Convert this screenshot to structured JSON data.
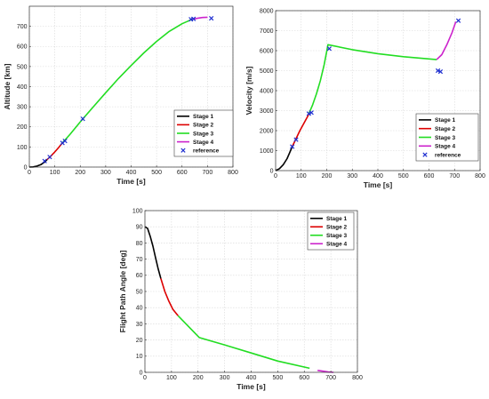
{
  "chart_data": [
    {
      "id": "altitude",
      "type": "line",
      "xlabel": "Time [s]",
      "ylabel": "Altitude [km]",
      "xlim": [
        0,
        800
      ],
      "ylim": [
        0,
        800
      ],
      "xticks": [
        0,
        100,
        200,
        300,
        400,
        500,
        600,
        700,
        800
      ],
      "yticks": [
        0,
        100,
        200,
        300,
        400,
        500,
        600,
        700
      ],
      "grid": true,
      "legend_position": "bottom-right",
      "series": [
        {
          "name": "Stage 1",
          "color": "#000000",
          "points": [
            [
              0,
              0
            ],
            [
              15,
              1
            ],
            [
              30,
              5
            ],
            [
              45,
              12
            ],
            [
              60,
              25
            ],
            [
              70,
              37
            ]
          ]
        },
        {
          "name": "Stage 2",
          "color": "#dd0000",
          "points": [
            [
              70,
              37
            ],
            [
              85,
              55
            ],
            [
              100,
              75
            ],
            [
              115,
              97
            ],
            [
              130,
              120
            ]
          ]
        },
        {
          "name": "Stage 3",
          "color": "#22dd22",
          "points": [
            [
              130,
              120
            ],
            [
              160,
              163
            ],
            [
              200,
              225
            ],
            [
              250,
              298
            ],
            [
              300,
              370
            ],
            [
              350,
              440
            ],
            [
              400,
              505
            ],
            [
              450,
              568
            ],
            [
              500,
              625
            ],
            [
              550,
              675
            ],
            [
              600,
              713
            ],
            [
              640,
              735
            ]
          ]
        },
        {
          "name": "Stage 4",
          "color": "#cc22cc",
          "points": [
            [
              640,
              735
            ],
            [
              660,
              740
            ],
            [
              680,
              744
            ],
            [
              700,
              745
            ]
          ]
        }
      ],
      "reference": {
        "name": "reference",
        "color": "#1f2fd0",
        "points": [
          [
            60,
            30
          ],
          [
            80,
            50
          ],
          [
            130,
            120
          ],
          [
            140,
            130
          ],
          [
            210,
            240
          ],
          [
            635,
            735
          ],
          [
            645,
            737
          ],
          [
            715,
            740
          ]
        ]
      }
    },
    {
      "id": "velocity",
      "type": "line",
      "xlabel": "Time [s]",
      "ylabel": "Velocity [m/s]",
      "xlim": [
        0,
        800
      ],
      "ylim": [
        0,
        8000
      ],
      "xticks": [
        0,
        100,
        200,
        300,
        400,
        500,
        600,
        700,
        800
      ],
      "yticks": [
        0,
        1000,
        2000,
        3000,
        4000,
        5000,
        6000,
        7000,
        8000
      ],
      "grid": true,
      "legend_position": "bottom-right",
      "series": [
        {
          "name": "Stage 1",
          "color": "#000000",
          "points": [
            [
              0,
              0
            ],
            [
              15,
              100
            ],
            [
              30,
              300
            ],
            [
              45,
              600
            ],
            [
              55,
              900
            ],
            [
              65,
              1200
            ]
          ]
        },
        {
          "name": "Stage 2",
          "color": "#dd0000",
          "points": [
            [
              65,
              1200
            ],
            [
              80,
              1600
            ],
            [
              95,
              2000
            ],
            [
              110,
              2350
            ],
            [
              125,
              2700
            ],
            [
              130,
              2850
            ]
          ]
        },
        {
          "name": "Stage 3",
          "color": "#22dd22",
          "points": [
            [
              130,
              2850
            ],
            [
              145,
              3300
            ],
            [
              160,
              3850
            ],
            [
              175,
              4500
            ],
            [
              190,
              5300
            ],
            [
              205,
              6300
            ],
            [
              300,
              6050
            ],
            [
              400,
              5850
            ],
            [
              500,
              5700
            ],
            [
              630,
              5550
            ]
          ]
        },
        {
          "name": "Stage 4",
          "color": "#cc22cc",
          "points": [
            [
              630,
              5550
            ],
            [
              650,
              5800
            ],
            [
              670,
              6300
            ],
            [
              690,
              6900
            ],
            [
              705,
              7450
            ]
          ]
        }
      ],
      "reference": {
        "name": "reference",
        "color": "#1f2fd0",
        "points": [
          [
            65,
            1200
          ],
          [
            80,
            1550
          ],
          [
            130,
            2850
          ],
          [
            140,
            2900
          ],
          [
            210,
            6100
          ],
          [
            635,
            5000
          ],
          [
            645,
            4950
          ],
          [
            715,
            7500
          ]
        ]
      }
    },
    {
      "id": "flight-path-angle",
      "type": "line",
      "xlabel": "Time [s]",
      "ylabel": "Flight Path Angle [deg]",
      "xlim": [
        0,
        800
      ],
      "ylim": [
        0,
        100
      ],
      "xticks": [
        0,
        100,
        200,
        300,
        400,
        500,
        600,
        700,
        800
      ],
      "yticks": [
        0,
        10,
        20,
        30,
        40,
        50,
        60,
        70,
        80,
        90,
        100
      ],
      "grid": true,
      "legend_position": "top-right",
      "series": [
        {
          "name": "Stage 1",
          "color": "#000000",
          "points": [
            [
              0,
              90
            ],
            [
              10,
              89
            ],
            [
              20,
              84
            ],
            [
              30,
              78
            ],
            [
              40,
              71
            ],
            [
              50,
              64
            ],
            [
              60,
              58
            ]
          ]
        },
        {
          "name": "Stage 2",
          "color": "#dd0000",
          "points": [
            [
              60,
              58
            ],
            [
              75,
              50
            ],
            [
              90,
              44
            ],
            [
              105,
              39
            ],
            [
              120,
              36
            ],
            [
              125,
              35
            ]
          ]
        },
        {
          "name": "Stage 3",
          "color": "#22dd22",
          "points": [
            [
              125,
              35
            ],
            [
              205,
              21.5
            ],
            [
              300,
              17
            ],
            [
              400,
              12
            ],
            [
              500,
              7
            ],
            [
              620,
              2.5
            ]
          ]
        },
        {
          "name": "Stage 4",
          "color": "#cc22cc",
          "points": [
            [
              650,
              1.2
            ],
            [
              670,
              0.7
            ],
            [
              690,
              0.3
            ],
            [
              710,
              0
            ]
          ]
        }
      ]
    }
  ]
}
